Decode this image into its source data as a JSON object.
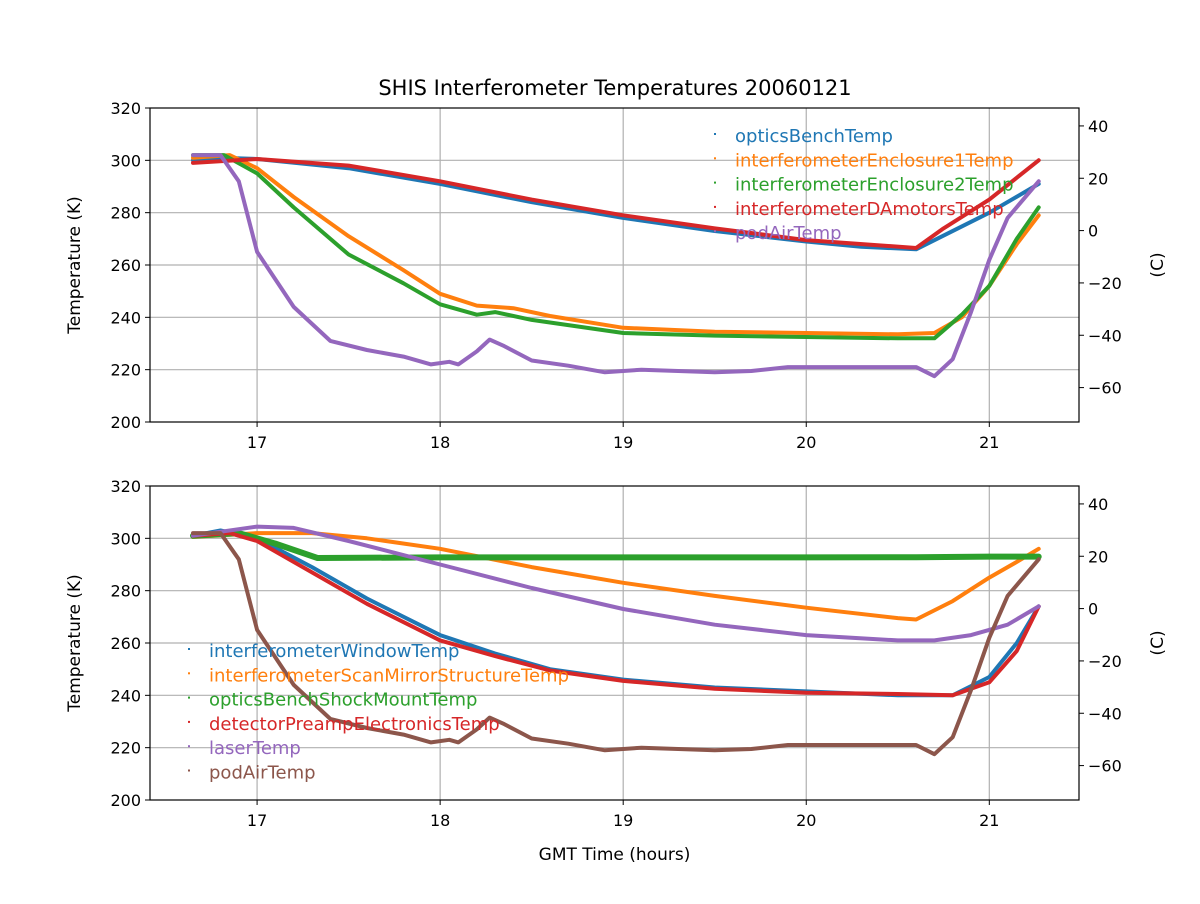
{
  "chart_data": {
    "title": "SHIS Interferometer Temperatures 20060121",
    "colors": [
      "#1f77b4",
      "#ff7f0e",
      "#2ca02c",
      "#d62728",
      "#9467bd",
      "#8c564b"
    ],
    "panels": [
      {
        "type": "line",
        "xlabel": "",
        "ylabel": "Temperature (K)",
        "ylabel_right": "(C)",
        "xlim": [
          16.415,
          21.49
        ],
        "ylim": [
          200,
          320
        ],
        "xticks": [
          "17",
          "18",
          "19",
          "20",
          "21"
        ],
        "yticks": [
          "200",
          "220",
          "240",
          "260",
          "280",
          "300",
          "320"
        ],
        "yticks_right": [
          "−60",
          "−40",
          "−20",
          "0",
          "20",
          "40"
        ],
        "grid": true,
        "legend_position": "top-right",
        "series": [
          {
            "name": "opticsBenchTemp",
            "color": "#1f77b4",
            "points": [
              [
                16.65,
                300
              ],
              [
                16.8,
                301
              ],
              [
                17,
                300.5
              ],
              [
                17.5,
                297
              ],
              [
                18,
                291
              ],
              [
                18.5,
                284
              ],
              [
                19,
                278
              ],
              [
                19.5,
                273
              ],
              [
                20,
                269
              ],
              [
                20.3,
                267
              ],
              [
                20.6,
                266
              ],
              [
                21,
                280
              ],
              [
                21.27,
                291
              ]
            ]
          },
          {
            "name": "interferometerEnclosure1Temp",
            "color": "#ff7f0e",
            "points": [
              [
                16.65,
                301
              ],
              [
                16.85,
                302
              ],
              [
                17,
                297
              ],
              [
                17.2,
                286
              ],
              [
                17.5,
                271
              ],
              [
                17.8,
                258
              ],
              [
                18,
                249
              ],
              [
                18.2,
                244.5
              ],
              [
                18.4,
                243.5
              ],
              [
                18.6,
                240.5
              ],
              [
                19,
                236
              ],
              [
                19.5,
                234.5
              ],
              [
                20,
                234
              ],
              [
                20.5,
                233.5
              ],
              [
                20.7,
                234
              ],
              [
                20.85,
                240
              ],
              [
                21,
                252
              ],
              [
                21.15,
                268
              ],
              [
                21.27,
                279
              ]
            ]
          },
          {
            "name": "interferometerEnclosure2Temp",
            "color": "#2ca02c",
            "points": [
              [
                16.65,
                302
              ],
              [
                16.82,
                302
              ],
              [
                17,
                295
              ],
              [
                17.2,
                282
              ],
              [
                17.5,
                264
              ],
              [
                17.8,
                253
              ],
              [
                18,
                245
              ],
              [
                18.2,
                241
              ],
              [
                18.3,
                242
              ],
              [
                18.5,
                239
              ],
              [
                19,
                234
              ],
              [
                19.5,
                233
              ],
              [
                20,
                232.5
              ],
              [
                20.5,
                232
              ],
              [
                20.7,
                232
              ],
              [
                20.85,
                241
              ],
              [
                21,
                252
              ],
              [
                21.15,
                270
              ],
              [
                21.27,
                282
              ]
            ]
          },
          {
            "name": "interferometerDAmotorsTemp",
            "color": "#d62728",
            "points": [
              [
                16.65,
                299
              ],
              [
                17,
                300.5
              ],
              [
                17.5,
                298
              ],
              [
                18,
                292
              ],
              [
                18.5,
                285
              ],
              [
                19,
                279
              ],
              [
                19.5,
                274
              ],
              [
                20,
                269.5
              ],
              [
                20.6,
                266.5
              ],
              [
                20.75,
                274
              ],
              [
                21,
                285
              ],
              [
                21.27,
                300
              ]
            ]
          },
          {
            "name": "podAirTemp",
            "color": "#9467bd",
            "points": [
              [
                16.65,
                302
              ],
              [
                16.8,
                302
              ],
              [
                16.9,
                292
              ],
              [
                17,
                265
              ],
              [
                17.2,
                244
              ],
              [
                17.4,
                231
              ],
              [
                17.6,
                227.5
              ],
              [
                17.8,
                225
              ],
              [
                17.95,
                222
              ],
              [
                18.05,
                223
              ],
              [
                18.1,
                222
              ],
              [
                18.2,
                227
              ],
              [
                18.27,
                231.5
              ],
              [
                18.35,
                229
              ],
              [
                18.5,
                223.5
              ],
              [
                18.7,
                221.5
              ],
              [
                18.9,
                219
              ],
              [
                19.1,
                220
              ],
              [
                19.5,
                219
              ],
              [
                19.7,
                219.5
              ],
              [
                19.9,
                221
              ],
              [
                20.2,
                221
              ],
              [
                20.6,
                221
              ],
              [
                20.7,
                217.5
              ],
              [
                20.8,
                224
              ],
              [
                20.9,
                242
              ],
              [
                21,
                262
              ],
              [
                21.1,
                278
              ],
              [
                21.27,
                292
              ]
            ]
          }
        ]
      },
      {
        "type": "line",
        "xlabel": "GMT Time (hours)",
        "ylabel": "Temperature (K)",
        "ylabel_right": "(C)",
        "xlim": [
          16.415,
          21.49
        ],
        "ylim": [
          200,
          320
        ],
        "xticks": [
          "17",
          "18",
          "19",
          "20",
          "21"
        ],
        "yticks": [
          "200",
          "220",
          "240",
          "260",
          "280",
          "300",
          "320"
        ],
        "yticks_right": [
          "−60",
          "−40",
          "−20",
          "0",
          "20",
          "40"
        ],
        "grid": true,
        "legend_position": "center-left",
        "series": [
          {
            "name": "interferometerWindowTemp",
            "color": "#1f77b4",
            "points": [
              [
                16.65,
                301
              ],
              [
                16.8,
                303
              ],
              [
                17,
                300
              ],
              [
                17.3,
                289
              ],
              [
                17.6,
                277
              ],
              [
                18,
                263
              ],
              [
                18.3,
                256
              ],
              [
                18.6,
                250
              ],
              [
                19,
                246
              ],
              [
                19.5,
                243
              ],
              [
                20,
                241.5
              ],
              [
                20.5,
                240
              ],
              [
                20.8,
                240
              ],
              [
                21,
                247
              ],
              [
                21.15,
                260
              ],
              [
                21.27,
                274
              ]
            ]
          },
          {
            "name": "interferometerScanMirrorStructureTemp",
            "color": "#ff7f0e",
            "points": [
              [
                16.65,
                300.5
              ],
              [
                17,
                302
              ],
              [
                17.3,
                302
              ],
              [
                17.6,
                300
              ],
              [
                18,
                296
              ],
              [
                18.5,
                289
              ],
              [
                19,
                283
              ],
              [
                19.5,
                278
              ],
              [
                20,
                273.5
              ],
              [
                20.5,
                269.5
              ],
              [
                20.6,
                269
              ],
              [
                20.8,
                276
              ],
              [
                21,
                285
              ],
              [
                21.15,
                291
              ],
              [
                21.27,
                296
              ]
            ]
          },
          {
            "name": "opticsBenchShockMountTemp",
            "color": "#2ca02c",
            "points": [
              [
                16.65,
                301
              ],
              [
                16.9,
                302
              ],
              [
                17.1,
                298
              ],
              [
                17.33,
                292.5
              ],
              [
                18,
                292.7
              ],
              [
                19,
                292.7
              ],
              [
                20,
                292.7
              ],
              [
                20.6,
                292.8
              ],
              [
                21,
                293
              ],
              [
                21.27,
                293
              ]
            ]
          },
          {
            "name": "detectorPreampElectronicsTemp",
            "color": "#d62728",
            "points": [
              [
                16.65,
                301
              ],
              [
                16.85,
                302
              ],
              [
                17,
                299
              ],
              [
                17.3,
                287
              ],
              [
                17.6,
                275
              ],
              [
                18,
                261
              ],
              [
                18.3,
                255
              ],
              [
                18.6,
                249.5
              ],
              [
                19,
                245.5
              ],
              [
                19.5,
                242.5
              ],
              [
                20,
                241
              ],
              [
                20.5,
                240.5
              ],
              [
                20.8,
                240
              ],
              [
                21,
                245
              ],
              [
                21.15,
                257
              ],
              [
                21.27,
                274
              ]
            ]
          },
          {
            "name": "laserTemp",
            "color": "#9467bd",
            "points": [
              [
                16.65,
                301
              ],
              [
                17,
                304.5
              ],
              [
                17.2,
                304
              ],
              [
                17.5,
                299
              ],
              [
                18,
                290
              ],
              [
                18.5,
                281
              ],
              [
                19,
                273
              ],
              [
                19.5,
                267
              ],
              [
                20,
                263
              ],
              [
                20.5,
                261
              ],
              [
                20.7,
                261
              ],
              [
                20.9,
                263
              ],
              [
                21.1,
                267
              ],
              [
                21.27,
                274
              ]
            ]
          },
          {
            "name": "podAirTemp",
            "color": "#8c564b",
            "points": [
              [
                16.65,
                302
              ],
              [
                16.8,
                302
              ],
              [
                16.9,
                292
              ],
              [
                17,
                265
              ],
              [
                17.2,
                244
              ],
              [
                17.4,
                231
              ],
              [
                17.6,
                227.5
              ],
              [
                17.8,
                225
              ],
              [
                17.95,
                222
              ],
              [
                18.05,
                223
              ],
              [
                18.1,
                222
              ],
              [
                18.2,
                227
              ],
              [
                18.27,
                231.5
              ],
              [
                18.35,
                229
              ],
              [
                18.5,
                223.5
              ],
              [
                18.7,
                221.5
              ],
              [
                18.9,
                219
              ],
              [
                19.1,
                220
              ],
              [
                19.5,
                219
              ],
              [
                19.7,
                219.5
              ],
              [
                19.9,
                221
              ],
              [
                20.2,
                221
              ],
              [
                20.6,
                221
              ],
              [
                20.7,
                217.5
              ],
              [
                20.8,
                224
              ],
              [
                20.9,
                242
              ],
              [
                21,
                262
              ],
              [
                21.1,
                278
              ],
              [
                21.27,
                292
              ]
            ]
          }
        ]
      }
    ]
  }
}
